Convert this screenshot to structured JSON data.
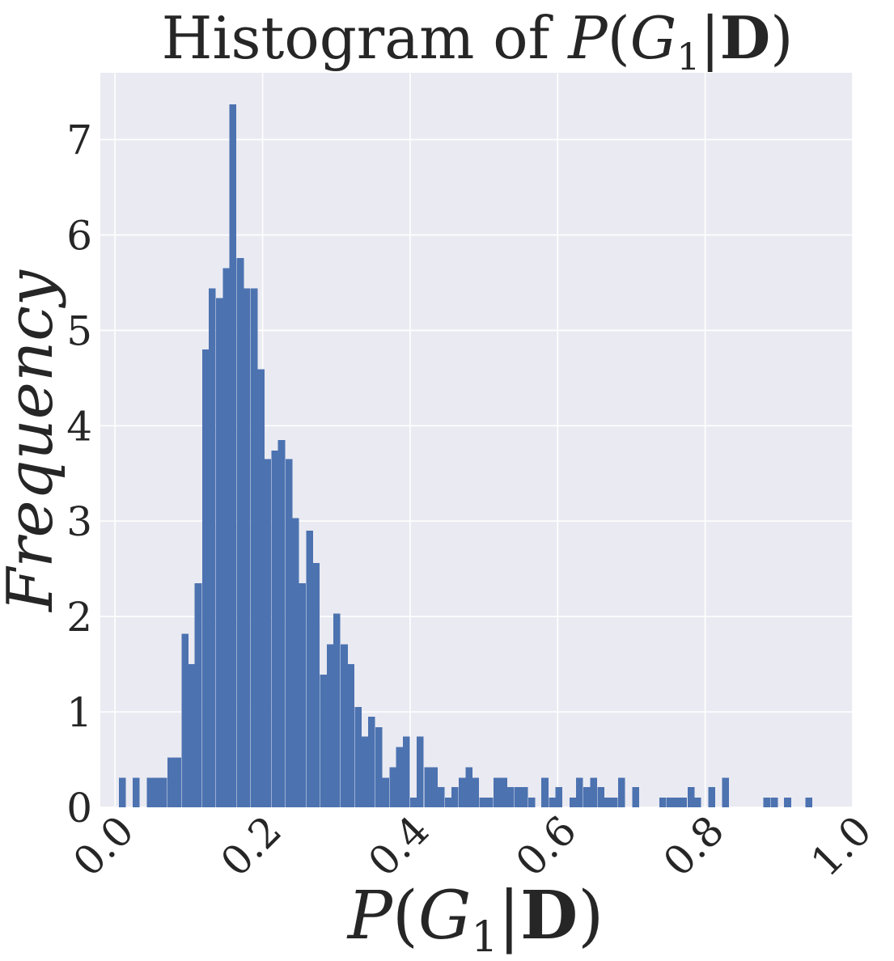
{
  "chart_data": {
    "type": "bar",
    "title": "Histogram of P(G₁|D)",
    "title_parts": {
      "prefix": "Histogram of ",
      "P": "P",
      "paren_open": "(",
      "G": "G",
      "sub": "1",
      "bar": "|",
      "D": "D",
      "paren_close": ")"
    },
    "xlabel": "P(G₁|D)",
    "ylabel": "Frequency",
    "xlim": [
      -0.02,
      1.0
    ],
    "ylim": [
      0,
      7.7
    ],
    "xticks": [
      "0.0",
      "0.2",
      "0.4",
      "0.6",
      "0.8",
      "1.0"
    ],
    "xtick_values": [
      0.0,
      0.2,
      0.4,
      0.6,
      0.8,
      1.0
    ],
    "yticks": [
      "0",
      "1",
      "2",
      "3",
      "4",
      "5",
      "6",
      "7"
    ],
    "ytick_values": [
      0,
      1,
      2,
      3,
      4,
      5,
      6,
      7
    ],
    "grid": true,
    "background": "#EAEAF2",
    "bar_color": "#4C72B0",
    "bin_width": 0.00941,
    "bins": [
      {
        "x": 0.005,
        "y": 0.31
      },
      {
        "x": 0.024,
        "y": 0.31
      },
      {
        "x": 0.043,
        "y": 0.31
      },
      {
        "x": 0.052,
        "y": 0.31
      },
      {
        "x": 0.061,
        "y": 0.31
      },
      {
        "x": 0.071,
        "y": 0.52
      },
      {
        "x": 0.08,
        "y": 0.52
      },
      {
        "x": 0.09,
        "y": 1.82
      },
      {
        "x": 0.099,
        "y": 1.5
      },
      {
        "x": 0.108,
        "y": 2.35
      },
      {
        "x": 0.118,
        "y": 4.8
      },
      {
        "x": 0.127,
        "y": 5.44
      },
      {
        "x": 0.137,
        "y": 5.34
      },
      {
        "x": 0.146,
        "y": 5.65
      },
      {
        "x": 0.155,
        "y": 7.37
      },
      {
        "x": 0.165,
        "y": 5.76
      },
      {
        "x": 0.174,
        "y": 5.44
      },
      {
        "x": 0.184,
        "y": 5.44
      },
      {
        "x": 0.193,
        "y": 4.59
      },
      {
        "x": 0.202,
        "y": 3.65
      },
      {
        "x": 0.212,
        "y": 3.74
      },
      {
        "x": 0.221,
        "y": 3.85
      },
      {
        "x": 0.231,
        "y": 3.65
      },
      {
        "x": 0.24,
        "y": 3.03
      },
      {
        "x": 0.249,
        "y": 2.35
      },
      {
        "x": 0.259,
        "y": 2.9
      },
      {
        "x": 0.268,
        "y": 2.56
      },
      {
        "x": 0.278,
        "y": 1.39
      },
      {
        "x": 0.287,
        "y": 1.71
      },
      {
        "x": 0.296,
        "y": 2.03
      },
      {
        "x": 0.306,
        "y": 1.71
      },
      {
        "x": 0.315,
        "y": 1.5
      },
      {
        "x": 0.325,
        "y": 1.05
      },
      {
        "x": 0.334,
        "y": 0.74
      },
      {
        "x": 0.343,
        "y": 0.95
      },
      {
        "x": 0.353,
        "y": 0.84
      },
      {
        "x": 0.362,
        "y": 0.31
      },
      {
        "x": 0.372,
        "y": 0.42
      },
      {
        "x": 0.381,
        "y": 0.63
      },
      {
        "x": 0.39,
        "y": 0.74
      },
      {
        "x": 0.4,
        "y": 0.1
      },
      {
        "x": 0.409,
        "y": 0.74
      },
      {
        "x": 0.419,
        "y": 0.42
      },
      {
        "x": 0.428,
        "y": 0.42
      },
      {
        "x": 0.437,
        "y": 0.21
      },
      {
        "x": 0.447,
        "y": 0.1
      },
      {
        "x": 0.456,
        "y": 0.21
      },
      {
        "x": 0.466,
        "y": 0.31
      },
      {
        "x": 0.475,
        "y": 0.42
      },
      {
        "x": 0.484,
        "y": 0.31
      },
      {
        "x": 0.494,
        "y": 0.1
      },
      {
        "x": 0.503,
        "y": 0.1
      },
      {
        "x": 0.513,
        "y": 0.31
      },
      {
        "x": 0.522,
        "y": 0.31
      },
      {
        "x": 0.531,
        "y": 0.21
      },
      {
        "x": 0.541,
        "y": 0.21
      },
      {
        "x": 0.55,
        "y": 0.21
      },
      {
        "x": 0.56,
        "y": 0.1
      },
      {
        "x": 0.578,
        "y": 0.31
      },
      {
        "x": 0.588,
        "y": 0.1
      },
      {
        "x": 0.597,
        "y": 0.21
      },
      {
        "x": 0.616,
        "y": 0.1
      },
      {
        "x": 0.625,
        "y": 0.31
      },
      {
        "x": 0.635,
        "y": 0.21
      },
      {
        "x": 0.644,
        "y": 0.31
      },
      {
        "x": 0.654,
        "y": 0.21
      },
      {
        "x": 0.663,
        "y": 0.1
      },
      {
        "x": 0.672,
        "y": 0.1
      },
      {
        "x": 0.682,
        "y": 0.31
      },
      {
        "x": 0.701,
        "y": 0.21
      },
      {
        "x": 0.738,
        "y": 0.1
      },
      {
        "x": 0.748,
        "y": 0.1
      },
      {
        "x": 0.757,
        "y": 0.1
      },
      {
        "x": 0.766,
        "y": 0.1
      },
      {
        "x": 0.776,
        "y": 0.21
      },
      {
        "x": 0.785,
        "y": 0.1
      },
      {
        "x": 0.804,
        "y": 0.21
      },
      {
        "x": 0.823,
        "y": 0.31
      },
      {
        "x": 0.879,
        "y": 0.1
      },
      {
        "x": 0.889,
        "y": 0.1
      },
      {
        "x": 0.907,
        "y": 0.1
      },
      {
        "x": 0.936,
        "y": 0.1
      }
    ]
  }
}
